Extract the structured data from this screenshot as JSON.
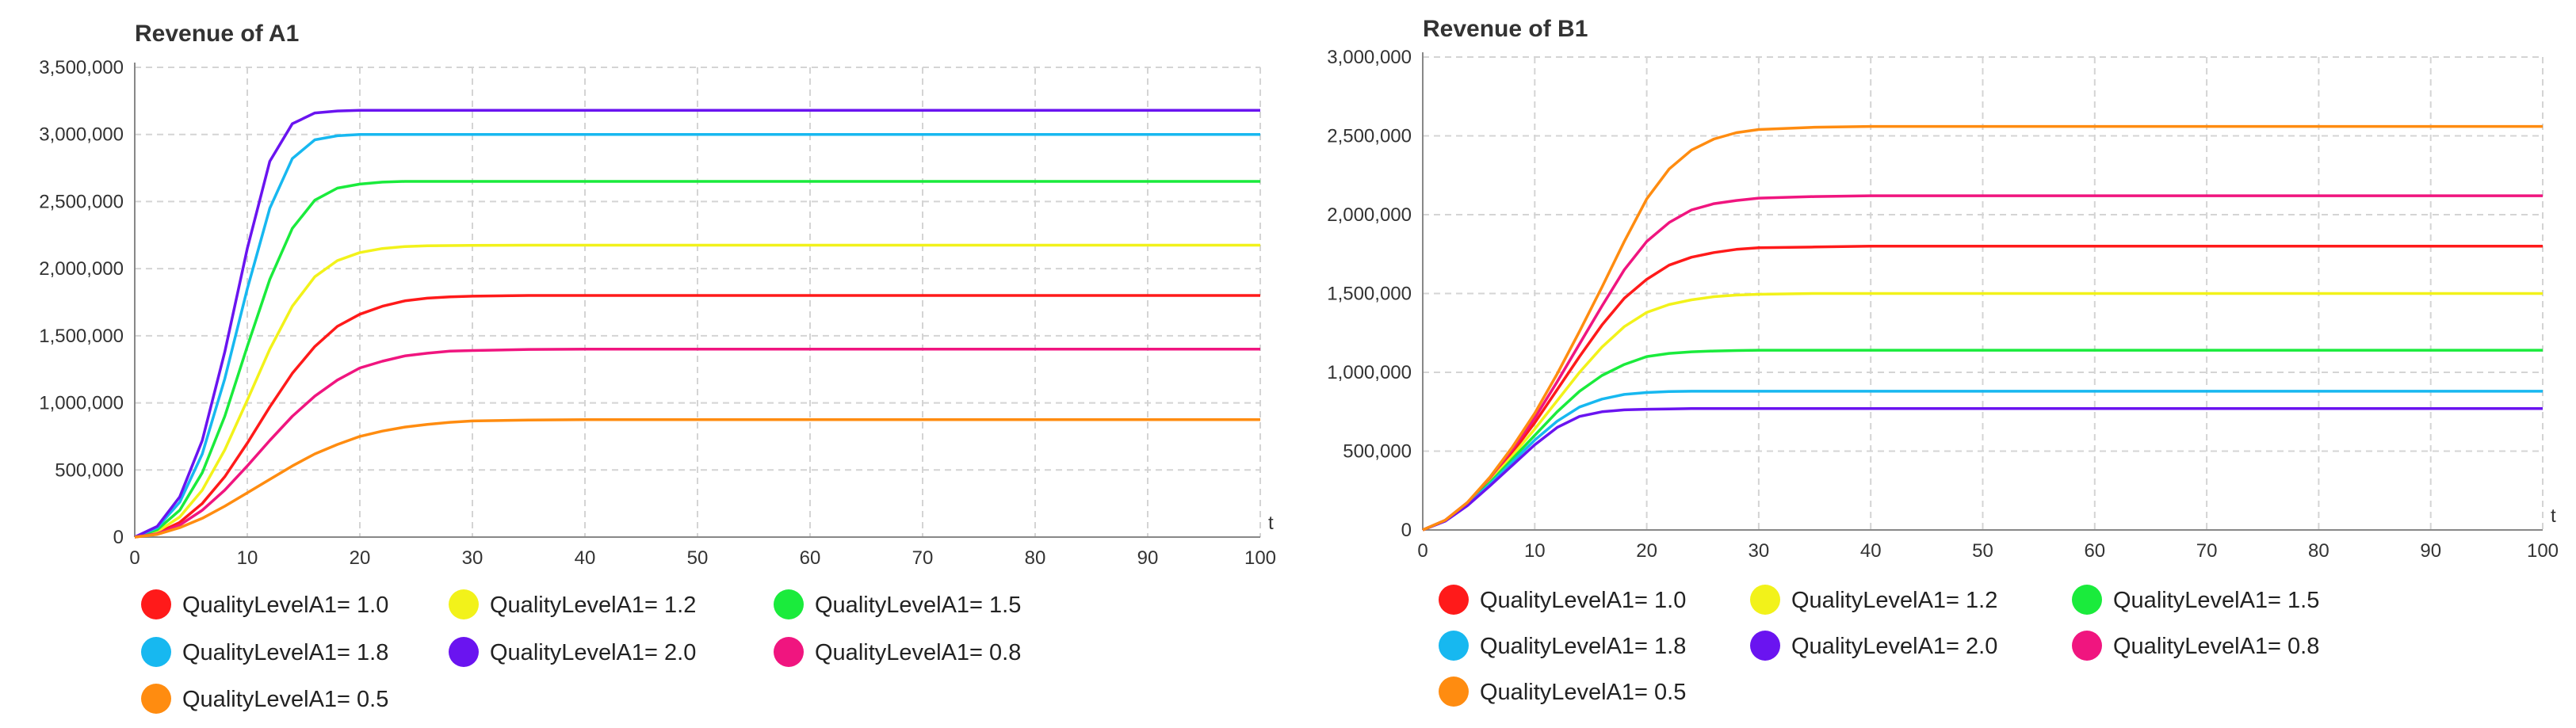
{
  "chart_data": [
    {
      "type": "line",
      "title": "Revenue of A1",
      "xlabel": "t",
      "ylabel": "",
      "xlim": [
        0,
        100
      ],
      "ylim": [
        0,
        3500000
      ],
      "x_ticks": [
        "0",
        "10",
        "20",
        "30",
        "40",
        "50",
        "60",
        "70",
        "80",
        "90",
        "100"
      ],
      "y_ticks": [
        "0",
        "500,000",
        "1,000,000",
        "1,500,000",
        "2,000,000",
        "2,500,000",
        "3,000,000",
        "3,500,000"
      ],
      "grid": true,
      "legend_position": "bottom",
      "x": [
        0,
        2,
        4,
        6,
        8,
        10,
        12,
        14,
        16,
        18,
        20,
        22,
        24,
        26,
        28,
        30,
        35,
        40,
        50,
        60,
        70,
        80,
        90,
        100
      ],
      "series": [
        {
          "name": "QualityLevelA1= 1.0",
          "color": "#ff1a1a",
          "values": [
            0,
            30000,
            110000,
            250000,
            450000,
            700000,
            970000,
            1220000,
            1420000,
            1570000,
            1660000,
            1720000,
            1760000,
            1780000,
            1790000,
            1795000,
            1800000,
            1800000,
            1800000,
            1800000,
            1800000,
            1800000,
            1800000,
            1800000
          ]
        },
        {
          "name": "QualityLevelA1= 1.2",
          "color": "#f2f21a",
          "values": [
            0,
            40000,
            150000,
            350000,
            650000,
            1020000,
            1400000,
            1720000,
            1940000,
            2060000,
            2120000,
            2150000,
            2165000,
            2170000,
            2172000,
            2173000,
            2175000,
            2175000,
            2175000,
            2175000,
            2175000,
            2175000,
            2175000,
            2175000
          ]
        },
        {
          "name": "QualityLevelA1= 1.5",
          "color": "#1aeb3c",
          "values": [
            0,
            55000,
            200000,
            480000,
            900000,
            1420000,
            1920000,
            2300000,
            2510000,
            2600000,
            2630000,
            2645000,
            2650000,
            2650000,
            2650000,
            2650000,
            2650000,
            2650000,
            2650000,
            2650000,
            2650000,
            2650000,
            2650000,
            2650000
          ]
        },
        {
          "name": "QualityLevelA1= 1.8",
          "color": "#17b8f0",
          "values": [
            0,
            70000,
            260000,
            620000,
            1180000,
            1850000,
            2450000,
            2820000,
            2960000,
            2990000,
            3000000,
            3000000,
            3000000,
            3000000,
            3000000,
            3000000,
            3000000,
            3000000,
            3000000,
            3000000,
            3000000,
            3000000,
            3000000,
            3000000
          ]
        },
        {
          "name": "QualityLevelA1= 2.0",
          "color": "#6a14f0",
          "values": [
            0,
            80000,
            300000,
            720000,
            1380000,
            2150000,
            2800000,
            3080000,
            3160000,
            3175000,
            3180000,
            3180000,
            3180000,
            3180000,
            3180000,
            3180000,
            3180000,
            3180000,
            3180000,
            3180000,
            3180000,
            3180000,
            3180000,
            3180000
          ]
        },
        {
          "name": "QualityLevelA1= 0.8",
          "color": "#f0157f",
          "values": [
            0,
            25000,
            90000,
            200000,
            350000,
            530000,
            720000,
            900000,
            1050000,
            1170000,
            1260000,
            1310000,
            1350000,
            1370000,
            1385000,
            1390000,
            1398000,
            1400000,
            1400000,
            1400000,
            1400000,
            1400000,
            1400000,
            1400000
          ]
        },
        {
          "name": "QualityLevelA1= 0.5",
          "color": "#ff8c10",
          "values": [
            0,
            20000,
            70000,
            140000,
            230000,
            330000,
            430000,
            530000,
            620000,
            690000,
            750000,
            790000,
            820000,
            840000,
            855000,
            865000,
            872000,
            875000,
            875000,
            875000,
            875000,
            875000,
            875000,
            875000
          ]
        }
      ]
    },
    {
      "type": "line",
      "title": "Revenue of B1",
      "xlabel": "t",
      "ylabel": "",
      "xlim": [
        0,
        100
      ],
      "ylim": [
        0,
        3000000
      ],
      "x_ticks": [
        "0",
        "10",
        "20",
        "30",
        "40",
        "50",
        "60",
        "70",
        "80",
        "90",
        "100"
      ],
      "y_ticks": [
        "0",
        "500,000",
        "1,000,000",
        "1,500,000",
        "2,000,000",
        "2,500,000",
        "3,000,000"
      ],
      "grid": true,
      "legend_position": "bottom",
      "x": [
        0,
        2,
        4,
        6,
        8,
        10,
        12,
        14,
        16,
        18,
        20,
        22,
        24,
        26,
        28,
        30,
        35,
        40,
        50,
        60,
        70,
        80,
        90,
        100
      ],
      "series": [
        {
          "name": "QualityLevelA1= 1.0",
          "color": "#ff1a1a",
          "values": [
            0,
            60000,
            170000,
            320000,
            490000,
            680000,
            890000,
            1100000,
            1300000,
            1470000,
            1590000,
            1680000,
            1730000,
            1760000,
            1780000,
            1790000,
            1795000,
            1800000,
            1800000,
            1800000,
            1800000,
            1800000,
            1800000,
            1800000
          ]
        },
        {
          "name": "QualityLevelA1= 1.2",
          "color": "#f2f21a",
          "values": [
            0,
            60000,
            170000,
            310000,
            470000,
            640000,
            820000,
            1000000,
            1160000,
            1290000,
            1380000,
            1430000,
            1460000,
            1480000,
            1490000,
            1495000,
            1500000,
            1500000,
            1500000,
            1500000,
            1500000,
            1500000,
            1500000,
            1500000
          ]
        },
        {
          "name": "QualityLevelA1= 1.5",
          "color": "#1aeb3c",
          "values": [
            0,
            60000,
            165000,
            300000,
            450000,
            600000,
            750000,
            880000,
            980000,
            1050000,
            1100000,
            1120000,
            1130000,
            1135000,
            1138000,
            1140000,
            1140000,
            1140000,
            1140000,
            1140000,
            1140000,
            1140000,
            1140000,
            1140000
          ]
        },
        {
          "name": "QualityLevelA1= 1.8",
          "color": "#17b8f0",
          "values": [
            0,
            58000,
            160000,
            290000,
            430000,
            570000,
            690000,
            780000,
            830000,
            860000,
            872000,
            878000,
            880000,
            880000,
            880000,
            880000,
            880000,
            880000,
            880000,
            880000,
            880000,
            880000,
            880000,
            880000
          ]
        },
        {
          "name": "QualityLevelA1= 2.0",
          "color": "#6a14f0",
          "values": [
            0,
            56000,
            155000,
            280000,
            410000,
            540000,
            650000,
            720000,
            750000,
            762000,
            766000,
            768000,
            770000,
            770000,
            770000,
            770000,
            770000,
            770000,
            770000,
            770000,
            770000,
            770000,
            770000,
            770000
          ]
        },
        {
          "name": "QualityLevelA1= 0.8",
          "color": "#f0157f",
          "values": [
            0,
            62000,
            175000,
            330000,
            510000,
            710000,
            940000,
            1180000,
            1420000,
            1650000,
            1830000,
            1950000,
            2030000,
            2070000,
            2090000,
            2105000,
            2115000,
            2120000,
            2120000,
            2120000,
            2120000,
            2120000,
            2120000,
            2120000
          ]
        },
        {
          "name": "QualityLevelA1= 0.5",
          "color": "#ff8c10",
          "values": [
            0,
            62000,
            175000,
            335000,
            525000,
            740000,
            990000,
            1260000,
            1540000,
            1830000,
            2100000,
            2290000,
            2410000,
            2480000,
            2520000,
            2540000,
            2555000,
            2560000,
            2560000,
            2560000,
            2560000,
            2560000,
            2560000,
            2560000
          ]
        }
      ]
    }
  ]
}
